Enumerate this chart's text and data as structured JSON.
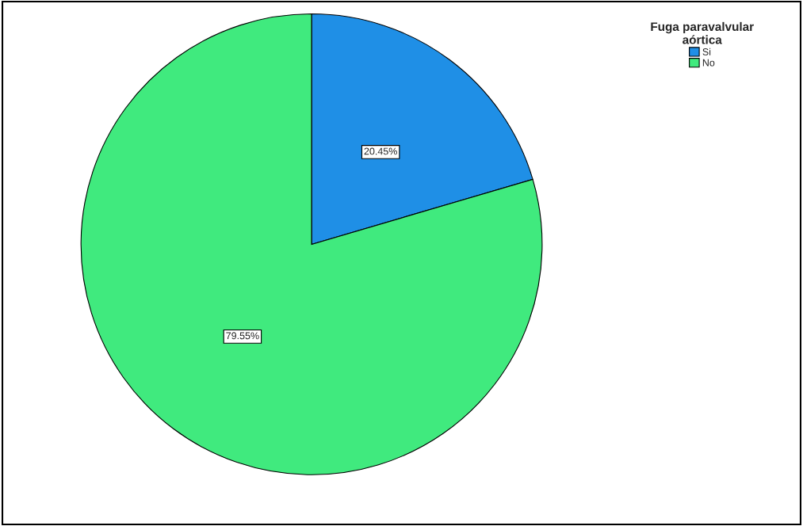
{
  "chart_data": {
    "type": "pie",
    "legend_title": "Fuga paravalvular\naórtica",
    "categories": [
      "Si",
      "No"
    ],
    "values": [
      20.45,
      79.55
    ],
    "colors": [
      "#1f8fe6",
      "#40ea7e"
    ],
    "value_labels": [
      "20.45%",
      "79.55%"
    ],
    "legend": "top right"
  }
}
